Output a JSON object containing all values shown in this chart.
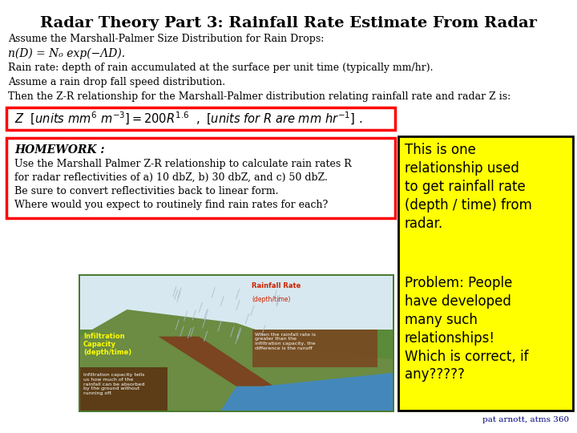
{
  "title": "Radar Theory Part 3: Rainfall Rate Estimate From Radar",
  "background_color": "#ffffff",
  "title_fontsize": 14,
  "line1": "Assume the Marshall-Palmer Size Distribution for Rain Drops:",
  "line2": "n(D) = N₀ exp(−ΛD).",
  "line3": "Rain rate: depth of rain accumulated at the surface per unit time (typically mm/hr).",
  "line4": "Assume a rain drop fall speed distribution.",
  "line5": "Then the Z-R relationship for the Marshall-Palmer distribution relating rainfall rate and radar Z is:",
  "homework_title": "HOMEWORK :",
  "homework_lines": [
    "Use the Marshall Palmer Z-R relationship to calculate rain rates R",
    "for radar reflectivities of a) 10 dbZ, b) 30 dbZ, and c) 50 dbZ.",
    "Be sure to convert reflectivities back to linear form.",
    "Where would you expect to routinely find rain rates for each?"
  ],
  "yellow_text1": "This is one\nrelationship used\nto get rainfall rate\n(depth / time) from\nradar.",
  "yellow_text2": "Problem: People\nhave developed\nmany such\nrelationships!\nWhich is correct, if\nany?????",
  "yellow_box_color": "#ffff00",
  "yellow_border_color": "#000000",
  "red_border_color": "#ff0000",
  "footer_text": "pat arnott, atms 360",
  "footer_color": "#000080",
  "font_color": "#000000",
  "img_border_color": "#4a7a30",
  "img_bg_color": "#5a8a3a",
  "img_ground_color": "#6b8c42",
  "img_water_color": "#4488bb",
  "img_rain_color": "#ccddee",
  "img_brown_color": "#7a4520",
  "img_dark_brown": "#5a3010"
}
